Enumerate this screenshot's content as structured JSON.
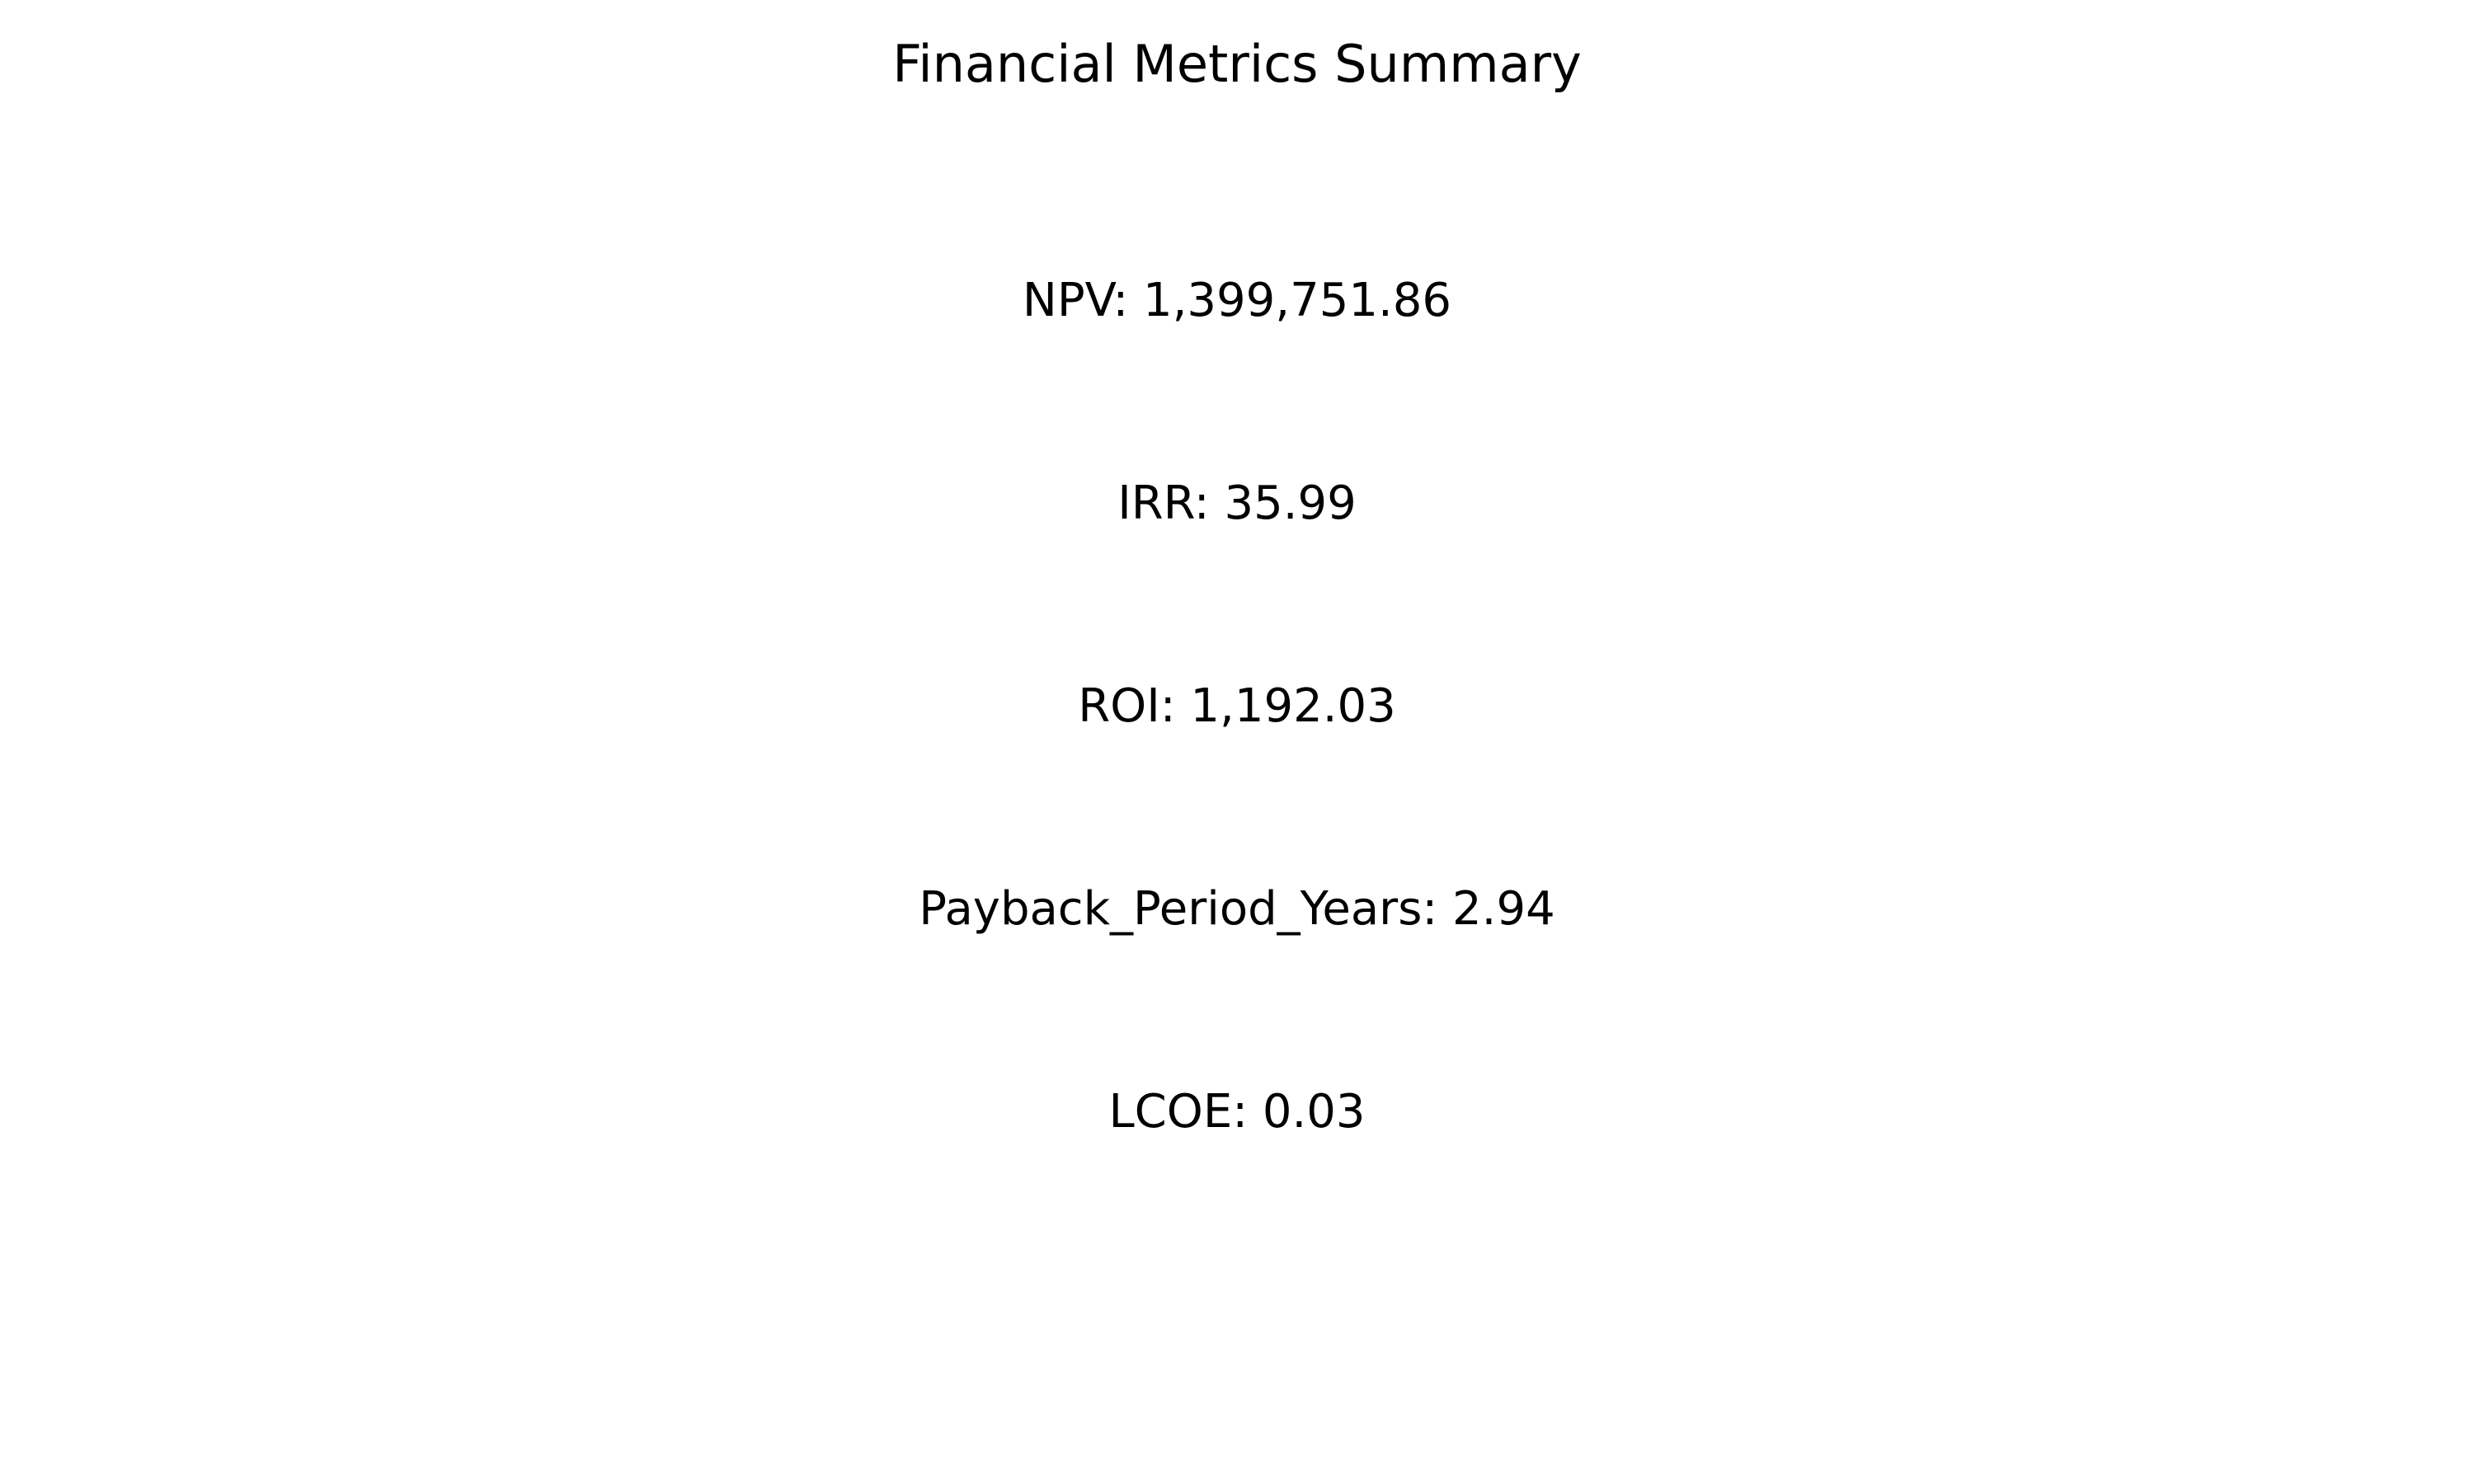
{
  "title": "Financial Metrics Summary",
  "metrics": [
    {
      "label": "NPV",
      "value": "1,399,751.86",
      "text": "NPV: 1,399,751.86"
    },
    {
      "label": "IRR",
      "value": "35.99",
      "text": "IRR: 35.99"
    },
    {
      "label": "ROI",
      "value": "1,192.03",
      "text": "ROI: 1,192.03"
    },
    {
      "label": "Payback_Period_Years",
      "value": "2.94",
      "text": "Payback_Period_Years: 2.94"
    },
    {
      "label": "LCOE",
      "value": "0.03",
      "text": "LCOE: 0.03"
    }
  ]
}
